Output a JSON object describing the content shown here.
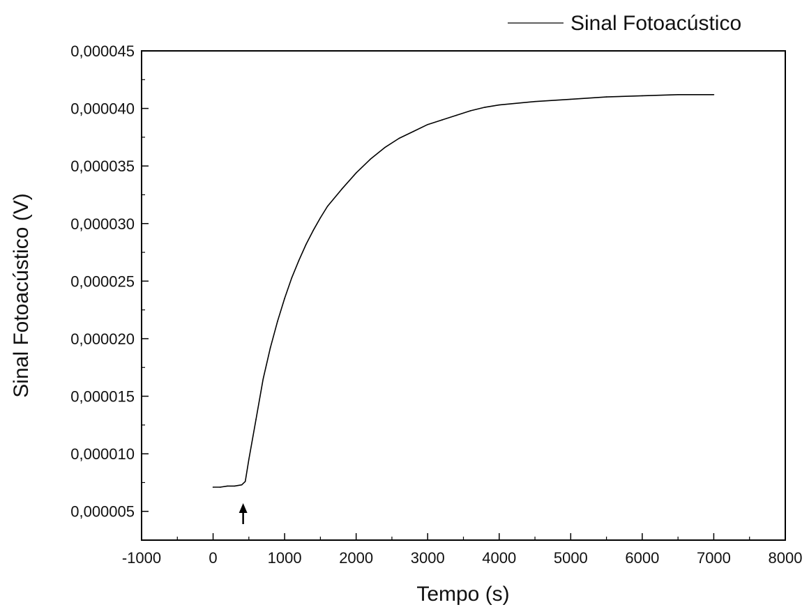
{
  "chart_data": {
    "type": "line",
    "xlabel": "Tempo (s)",
    "ylabel": "Sinal Fotoacústico (V)",
    "xlim": [
      -1000,
      8000
    ],
    "ylim": [
      2.5e-06,
      4.5e-05
    ],
    "x_ticks": [
      -1000,
      0,
      1000,
      2000,
      3000,
      4000,
      5000,
      6000,
      7000,
      8000
    ],
    "x_tick_labels": [
      "-1000",
      "0",
      "1000",
      "2000",
      "3000",
      "4000",
      "5000",
      "6000",
      "7000",
      "8000"
    ],
    "y_ticks": [
      5e-06,
      1e-05,
      1.5e-05,
      2e-05,
      2.5e-05,
      3e-05,
      3.5e-05,
      4e-05,
      4.5e-05
    ],
    "y_tick_labels": [
      "0,000005",
      "0,000010",
      "0,000015",
      "0,000020",
      "0,000025",
      "0,000030",
      "0,000035",
      "0,000040",
      "0,000045"
    ],
    "grid": false,
    "legend_position": "top-right",
    "annotations": [
      {
        "type": "arrow",
        "x": 420,
        "direction": "up",
        "description": "marker at signal onset"
      }
    ],
    "series": [
      {
        "name": "Sinal Fotoacústico",
        "color": "#000000",
        "x": [
          0,
          100,
          200,
          300,
          400,
          450,
          500,
          600,
          700,
          800,
          900,
          1000,
          1100,
          1200,
          1300,
          1400,
          1500,
          1600,
          1800,
          2000,
          2200,
          2400,
          2600,
          2800,
          3000,
          3200,
          3400,
          3600,
          3800,
          4000,
          4500,
          5000,
          5500,
          6000,
          6500,
          7000
        ],
        "y": [
          7.1e-06,
          7.1e-06,
          7.2e-06,
          7.2e-06,
          7.3e-06,
          7.6e-06,
          9.5e-06,
          1.3e-05,
          1.65e-05,
          1.92e-05,
          2.15e-05,
          2.35e-05,
          2.53e-05,
          2.68e-05,
          2.82e-05,
          2.94e-05,
          3.05e-05,
          3.15e-05,
          3.3e-05,
          3.44e-05,
          3.56e-05,
          3.66e-05,
          3.74e-05,
          3.8e-05,
          3.86e-05,
          3.9e-05,
          3.94e-05,
          3.98e-05,
          4.01e-05,
          4.03e-05,
          4.06e-05,
          4.08e-05,
          4.1e-05,
          4.11e-05,
          4.12e-05,
          4.12e-05
        ]
      }
    ]
  }
}
